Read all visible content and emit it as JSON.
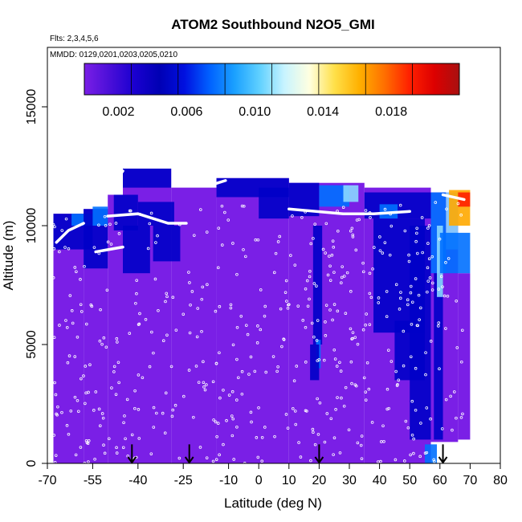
{
  "chart_data": {
    "type": "heatmap",
    "title": "ATOM2 Southbound N2O5_GMI",
    "subtitle_flights": "Flts: 2,3,4,5,6",
    "subtitle_dates": "MMDD: 0129,0201,0203,0205,0210",
    "xlabel": "Latitude (deg N)",
    "ylabel": "Altitude (m)",
    "xlim": [
      -70,
      80
    ],
    "ylim": [
      0,
      17500
    ],
    "x_ticks": [
      -70,
      -55,
      -40,
      -25,
      -10,
      0,
      10,
      20,
      30,
      40,
      50,
      60,
      70,
      80
    ],
    "x_tick_labels": [
      "-70",
      "-55",
      "-40",
      "-25",
      "-10",
      "0",
      "10",
      "20",
      "30",
      "40",
      "50",
      "60",
      "70",
      "80"
    ],
    "y_ticks": [
      0,
      5000,
      10000,
      15000
    ],
    "y_tick_labels": [
      "0",
      "5000",
      "10000",
      "15000"
    ],
    "colorbar": {
      "range": [
        0,
        0.022
      ],
      "tick_values": [
        0.002,
        0.006,
        0.01,
        0.014,
        0.018
      ],
      "tick_labels": [
        "0.002",
        "0.006",
        "0.010",
        "0.014",
        "0.018"
      ],
      "colors": [
        "#7a1fe6",
        "#4b0fd8",
        "#1a00d0",
        "#0000b4",
        "#0010e0",
        "#0060ff",
        "#1aa0ff",
        "#5fd0ff",
        "#c8f4ff",
        "#ffffe0",
        "#ffe04a",
        "#ffb000",
        "#ff7000",
        "#ff2000",
        "#dd0000",
        "#a81010"
      ]
    },
    "arrow_latitudes": [
      -42,
      -23,
      20,
      61
    ],
    "colors": {
      "background": "#7a1fe6",
      "deep_blue": "#0000c8",
      "mid_blue": "#0070ff",
      "light_blue": "#8ad8ff",
      "orange": "#ffa800",
      "red": "#ff2000",
      "flight_track": "#ffffff"
    }
  }
}
